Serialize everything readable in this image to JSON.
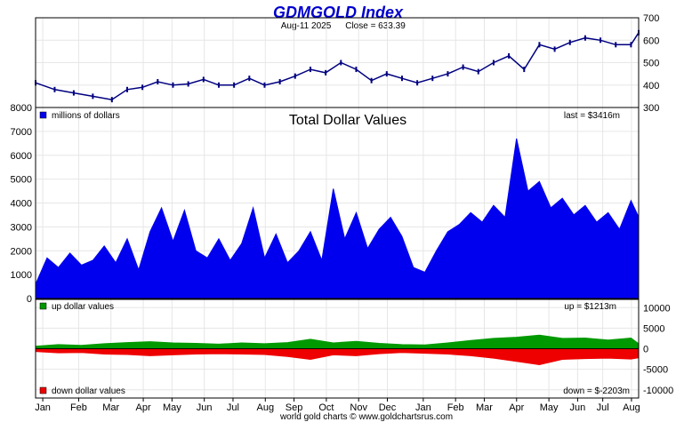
{
  "header": {
    "title": "GDMGOLD Index",
    "date": "Aug-11  2025",
    "close_label": "Close = 633.39"
  },
  "footer": {
    "credit": "world gold charts © www.goldchartsrus.com"
  },
  "colors": {
    "title": "#0000cc",
    "price": "#000080",
    "volume": "#0000ee",
    "up": "#009900",
    "down": "#ee0000",
    "grid": "#e6e6e6"
  },
  "chart_data": [
    {
      "name": "price",
      "type": "line",
      "ylim": [
        300,
        700
      ],
      "yticks": [
        300,
        400,
        500,
        600,
        700
      ],
      "x_range": [
        0,
        158
      ],
      "x": [
        0,
        5,
        10,
        15,
        20,
        24,
        28,
        32,
        36,
        40,
        44,
        48,
        52,
        56,
        60,
        64,
        68,
        72,
        76,
        80,
        84,
        88,
        92,
        96,
        100,
        104,
        108,
        112,
        116,
        120,
        124,
        128,
        132,
        136,
        140,
        144,
        148,
        152,
        156,
        158
      ],
      "y": [
        410,
        380,
        365,
        350,
        335,
        380,
        390,
        415,
        400,
        405,
        425,
        400,
        400,
        430,
        400,
        415,
        440,
        470,
        455,
        500,
        470,
        420,
        450,
        430,
        410,
        430,
        450,
        480,
        460,
        500,
        530,
        470,
        580,
        560,
        590,
        610,
        600,
        580,
        580,
        633.39
      ]
    },
    {
      "name": "volume",
      "type": "area",
      "title": "Total Dollar Values",
      "legend": "millions of dollars",
      "last_label": "last = $3416m",
      "ylim": [
        0,
        8000
      ],
      "yticks": [
        0,
        1000,
        2000,
        3000,
        4000,
        5000,
        6000,
        7000,
        8000
      ],
      "x_range": [
        0,
        158
      ],
      "x": [
        0,
        3,
        6,
        9,
        12,
        15,
        18,
        21,
        24,
        27,
        30,
        33,
        36,
        39,
        42,
        45,
        48,
        51,
        54,
        57,
        60,
        63,
        66,
        69,
        72,
        75,
        78,
        81,
        84,
        87,
        90,
        93,
        96,
        99,
        102,
        105,
        108,
        111,
        114,
        117,
        120,
        123,
        126,
        129,
        132,
        135,
        138,
        141,
        144,
        147,
        150,
        153,
        156,
        158
      ],
      "y": [
        600,
        1700,
        1300,
        1900,
        1400,
        1600,
        2200,
        1500,
        2500,
        1200,
        2800,
        3800,
        2400,
        3700,
        2000,
        1700,
        2500,
        1600,
        2300,
        3800,
        1700,
        2700,
        1500,
        2000,
        2800,
        1600,
        4600,
        2500,
        3600,
        2100,
        2900,
        3400,
        2600,
        1300,
        1100,
        2000,
        2800,
        3100,
        3600,
        3200,
        3900,
        3400,
        6700,
        4500,
        4900,
        3800,
        4200,
        3500,
        3900,
        3200,
        3600,
        2900,
        4100,
        3416
      ]
    },
    {
      "name": "up_down",
      "type": "bar",
      "ylim": [
        -12000,
        12000
      ],
      "yticks": [
        -10000,
        -5000,
        0,
        5000,
        10000
      ],
      "up_legend": "up dollar values",
      "up_label": "up = $1213m",
      "down_legend": "down dollar values",
      "down_label": "down = $-2203m",
      "x_range": [
        0,
        158
      ],
      "x": [
        0,
        6,
        12,
        18,
        24,
        30,
        36,
        42,
        48,
        54,
        60,
        66,
        72,
        78,
        84,
        90,
        96,
        102,
        108,
        114,
        120,
        126,
        132,
        138,
        144,
        150,
        156,
        158
      ],
      "up": [
        600,
        1000,
        800,
        1200,
        1500,
        1700,
        1400,
        1300,
        1100,
        1400,
        1200,
        1500,
        2300,
        1400,
        1800,
        1300,
        1000,
        900,
        1400,
        2000,
        2500,
        2800,
        3300,
        2500,
        2600,
        2100,
        2600,
        1213
      ],
      "down": [
        -700,
        -1000,
        -900,
        -1300,
        -1400,
        -1700,
        -1500,
        -1300,
        -1200,
        -1300,
        -1400,
        -1900,
        -2600,
        -1500,
        -1700,
        -1200,
        -900,
        -1100,
        -1300,
        -1700,
        -2300,
        -3100,
        -3900,
        -2600,
        -2400,
        -2300,
        -2500,
        -2203
      ]
    }
  ],
  "x_axis": {
    "ticks": [
      {
        "label": "Jan",
        "x": 2
      },
      {
        "label": "Feb",
        "x": 12
      },
      {
        "label": "Mar",
        "x": 21
      },
      {
        "label": "Apr",
        "x": 30
      },
      {
        "label": "May",
        "x": 38
      },
      {
        "label": "Jun",
        "x": 47
      },
      {
        "label": "Jul",
        "x": 55
      },
      {
        "label": "Aug",
        "x": 64
      },
      {
        "label": "Sep",
        "x": 72
      },
      {
        "label": "Oct",
        "x": 81
      },
      {
        "label": "Nov",
        "x": 90
      },
      {
        "label": "Dec",
        "x": 98
      },
      {
        "label": "Jan",
        "x": 108
      },
      {
        "label": "Feb",
        "x": 117
      },
      {
        "label": "Mar",
        "x": 125
      },
      {
        "label": "Apr",
        "x": 134
      },
      {
        "label": "May",
        "x": 143
      },
      {
        "label": "Jun",
        "x": 151
      },
      {
        "label": "Jul",
        "x": 158
      },
      {
        "label": "Aug",
        "x": 166
      }
    ]
  }
}
